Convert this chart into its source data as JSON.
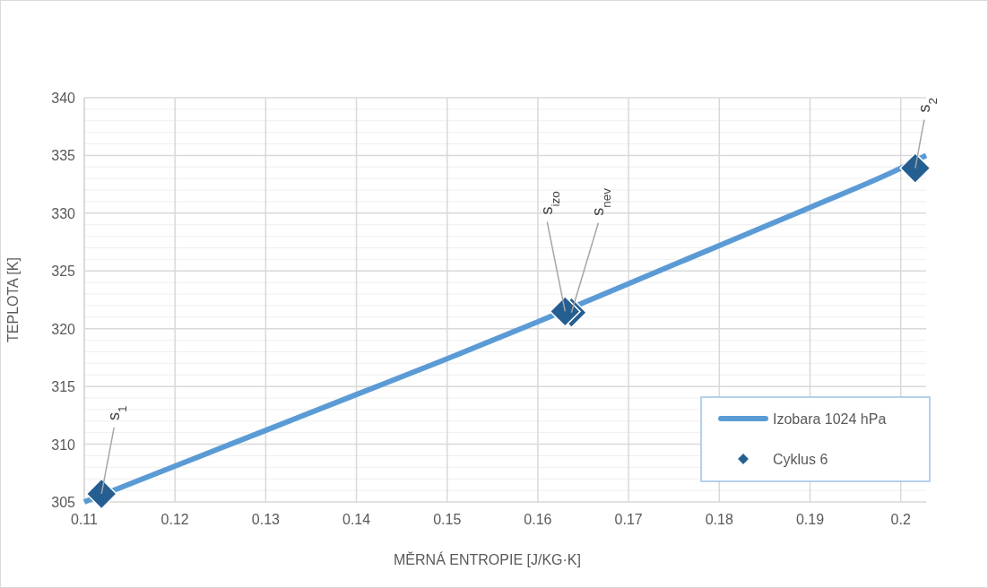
{
  "chart_data": {
    "type": "line",
    "xlabel": "MĚRNÁ ENTROPIE [J/KG·K]",
    "ylabel": "TEPLOTA [K]",
    "xlim": [
      0.11,
      0.2028
    ],
    "xticks": [
      0.11,
      0.12,
      0.13,
      0.14,
      0.15,
      0.16,
      0.17,
      0.18,
      0.19,
      0.2
    ],
    "ylim": [
      305,
      340
    ],
    "yticks": [
      305,
      310,
      315,
      320,
      325,
      330,
      335,
      340
    ],
    "grid": true,
    "legend": "bottom right",
    "series": [
      {
        "name": "Izobara 1024 hPa",
        "color": "#5b9bd5",
        "x": [
          0.11,
          0.12,
          0.13,
          0.14,
          0.15,
          0.16,
          0.17,
          0.18,
          0.19,
          0.2,
          0.2028
        ],
        "values": [
          305,
          308.1,
          311.2,
          314.3,
          317.4,
          320.6,
          323.9,
          327.2,
          330.5,
          333.9,
          335.0
        ]
      },
      {
        "name": "Cyklus 6",
        "type": "scatter",
        "color": "#255e91",
        "marker": "diamond",
        "x": [
          0.1119,
          0.1637,
          0.163,
          0.2016
        ],
        "values": [
          305.7,
          321.4,
          321.5,
          333.9
        ]
      }
    ],
    "annotations": [
      {
        "text": "s$_{1}$",
        "x": 0.1119,
        "y": 305.7
      },
      {
        "text": "s$_{izo}$",
        "x": 0.163,
        "y": 321.5
      },
      {
        "text": "s$_{nev}$",
        "x": 0.1637,
        "y": 321.4
      },
      {
        "text": "s$_{2}$",
        "x": 0.2016,
        "y": 333.9
      }
    ]
  }
}
